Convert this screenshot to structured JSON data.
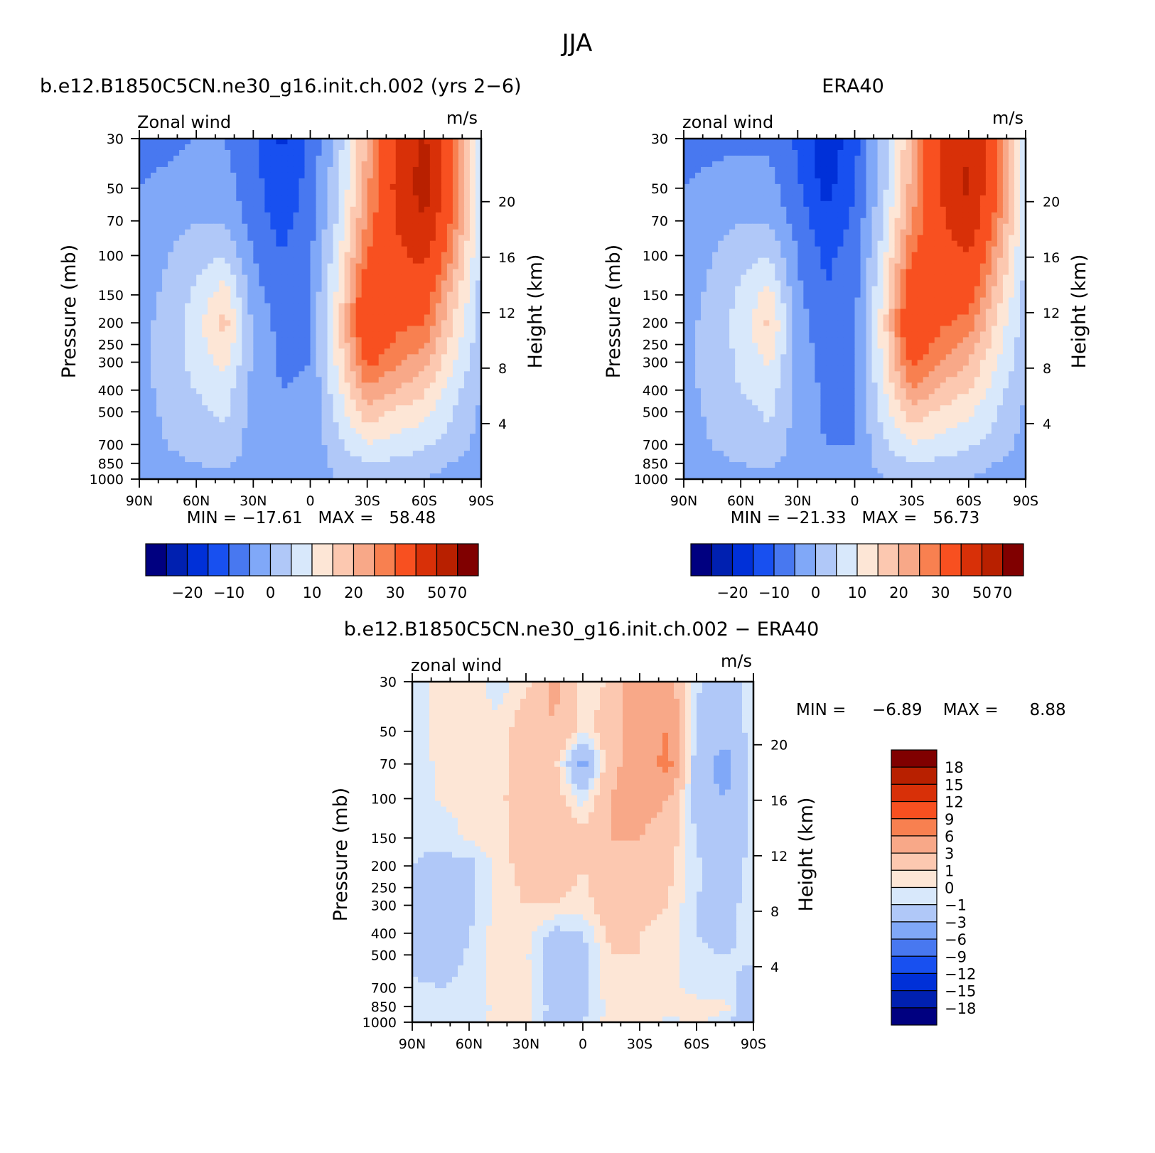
{
  "figure": {
    "title": "JJA",
    "cbar_colors": [
      "#000080",
      "#0020b0",
      "#0030d8",
      "#1850f0",
      "#4878f0",
      "#80a8f8",
      "#b0c8f8",
      "#d8e8fb",
      "#fde6d6",
      "#fcc8b0",
      "#f8a888",
      "#f88050",
      "#f85020",
      "#d83008",
      "#b82000",
      "#800000"
    ]
  },
  "panels": [
    {
      "title": "b.e12.B1850C5CN.ne30_g16.init.ch.002 (yrs 2−6)",
      "left_label": "Zonal wind",
      "right_label": "m/s",
      "ylabel": "Pressure (mb)",
      "y2label": "Height (km)",
      "min_max": "MIN = −17.61   MAX =   58.48"
    },
    {
      "title": "ERA40",
      "left_label": "zonal wind",
      "right_label": "m/s",
      "ylabel": "Pressure (mb)",
      "y2label": "Height (km)",
      "min_max": "MIN = −21.33   MAX =   56.73"
    },
    {
      "title": "b.e12.B1850C5CN.ne30_g16.init.ch.002 − ERA40",
      "left_label": "zonal wind",
      "right_label": "m/s",
      "ylabel": "Pressure (mb)",
      "y2label": "Height (km)",
      "min_max": "MIN =     −6.89    MAX =      8.88"
    }
  ],
  "colorbars": {
    "fields_ticks": [
      "−20",
      "−10",
      "0",
      "10",
      "20",
      "30",
      "50",
      "70"
    ],
    "diff_ticks": [
      "18",
      "15",
      "12",
      "9",
      "6",
      "3",
      "1",
      "0",
      "−1",
      "−3",
      "−6",
      "−9",
      "−12",
      "−15",
      "−18"
    ]
  },
  "chart_data": [
    {
      "type": "heatmap",
      "title": "b.e12.B1850C5CN.ne30_g16.init.ch.002 (yrs 2−6)",
      "variable": "Zonal wind",
      "units": "m/s",
      "xlabel": "",
      "ylabel": "Pressure (mb)",
      "y2label": "Height (km)",
      "x_ticks": [
        "90N",
        "60N",
        "30N",
        "0",
        "30S",
        "60S",
        "90S"
      ],
      "y_ticks": [
        30,
        50,
        70,
        100,
        150,
        200,
        250,
        300,
        400,
        500,
        700,
        850,
        1000
      ],
      "y2_ticks": [
        4,
        8,
        12,
        16,
        20
      ],
      "ylim": [
        1000,
        30
      ],
      "y_scale": "log",
      "lat": [
        90,
        75,
        60,
        45,
        30,
        15,
        0,
        -15,
        -30,
        -45,
        -60,
        -75,
        -90
      ],
      "pressure": [
        30,
        50,
        70,
        100,
        150,
        200,
        300,
        400,
        500,
        700,
        850,
        1000
      ],
      "values": [
        [
          -6,
          -6,
          -5,
          -5,
          -9,
          -16,
          -9,
          3,
          20,
          40,
          52,
          30,
          6
        ],
        [
          -5,
          -4,
          -2,
          -3,
          -8,
          -14,
          -8,
          4,
          24,
          42,
          55,
          30,
          6
        ],
        [
          -4,
          -2,
          0,
          -1,
          -7,
          -12,
          -7,
          6,
          26,
          40,
          50,
          28,
          5
        ],
        [
          -3,
          0,
          3,
          5,
          -5,
          -10,
          -6,
          9,
          30,
          38,
          42,
          24,
          4
        ],
        [
          -2,
          1,
          6,
          13,
          -3,
          -8,
          -5,
          12,
          37,
          34,
          35,
          18,
          3
        ],
        [
          -2,
          2,
          8,
          17,
          -1,
          -7,
          -5,
          14,
          40,
          32,
          30,
          15,
          2
        ],
        [
          -2,
          2,
          7,
          12,
          -1,
          -6,
          -5,
          12,
          32,
          26,
          22,
          11,
          1
        ],
        [
          -2,
          2,
          5,
          8,
          -2,
          -5,
          -4,
          9,
          24,
          20,
          16,
          7,
          0
        ],
        [
          -2,
          1,
          4,
          6,
          -2,
          -5,
          -4,
          7,
          18,
          14,
          12,
          5,
          -1
        ],
        [
          -2,
          0,
          2,
          3,
          -2,
          -5,
          -4,
          4,
          10,
          8,
          6,
          3,
          -2
        ],
        [
          -2,
          -1,
          0,
          1,
          -2,
          -4,
          -4,
          2,
          5,
          4,
          2,
          0,
          -3
        ],
        [
          -3,
          -2,
          -2,
          -1,
          -2,
          -3,
          -3,
          0,
          2,
          1,
          0,
          -2,
          -4
        ]
      ],
      "contour_levels": [
        -25,
        -20,
        -15,
        -10,
        -5,
        0,
        5,
        10,
        15,
        20,
        25,
        30,
        40,
        50,
        60,
        70
      ],
      "min": -17.61,
      "max": 58.48
    },
    {
      "type": "heatmap",
      "title": "ERA40",
      "variable": "zonal wind",
      "units": "m/s",
      "xlabel": "",
      "ylabel": "Pressure (mb)",
      "y2label": "Height (km)",
      "x_ticks": [
        "90N",
        "60N",
        "30N",
        "0",
        "30S",
        "60S",
        "90S"
      ],
      "y_ticks": [
        30,
        50,
        70,
        100,
        150,
        200,
        250,
        300,
        400,
        500,
        700,
        850,
        1000
      ],
      "y2_ticks": [
        4,
        8,
        12,
        16,
        20
      ],
      "ylim": [
        1000,
        30
      ],
      "y_scale": "log",
      "lat": [
        90,
        75,
        60,
        45,
        30,
        15,
        0,
        -15,
        -30,
        -45,
        -60,
        -75,
        -90
      ],
      "pressure": [
        30,
        50,
        70,
        100,
        150,
        200,
        300,
        400,
        500,
        700,
        850,
        1000
      ],
      "values": [
        [
          -6,
          -6,
          -6,
          -6,
          -11,
          -19,
          -12,
          2,
          20,
          40,
          50,
          30,
          6
        ],
        [
          -5,
          -4,
          -3,
          -3,
          -9,
          -17,
          -10,
          3,
          22,
          40,
          52,
          30,
          6
        ],
        [
          -4,
          -2,
          0,
          -1,
          -7,
          -14,
          -9,
          5,
          25,
          38,
          48,
          27,
          5
        ],
        [
          -3,
          0,
          3,
          5,
          -5,
          -11,
          -8,
          8,
          30,
          36,
          40,
          22,
          4
        ],
        [
          -2,
          1,
          6,
          12,
          -4,
          -10,
          -7,
          11,
          36,
          33,
          33,
          17,
          3
        ],
        [
          -2,
          2,
          7,
          16,
          -2,
          -9,
          -6,
          13,
          40,
          31,
          28,
          14,
          2
        ],
        [
          -2,
          2,
          6,
          11,
          -2,
          -7,
          -6,
          11,
          32,
          25,
          20,
          10,
          1
        ],
        [
          -2,
          2,
          5,
          8,
          -2,
          -6,
          -5,
          9,
          25,
          19,
          15,
          7,
          0
        ],
        [
          -2,
          1,
          3,
          6,
          -2,
          -6,
          -5,
          7,
          18,
          14,
          11,
          5,
          -1
        ],
        [
          -2,
          0,
          2,
          3,
          -2,
          -5,
          -5,
          4,
          10,
          8,
          6,
          3,
          -2
        ],
        [
          -2,
          -1,
          0,
          1,
          -2,
          -5,
          -4,
          2,
          5,
          4,
          2,
          0,
          -3
        ],
        [
          -3,
          -2,
          -2,
          -1,
          -2,
          -4,
          -4,
          0,
          2,
          1,
          0,
          -2,
          -4
        ]
      ],
      "contour_levels": [
        -25,
        -20,
        -15,
        -10,
        -5,
        0,
        5,
        10,
        15,
        20,
        25,
        30,
        40,
        50,
        60,
        70
      ],
      "min": -21.33,
      "max": 56.73
    },
    {
      "type": "heatmap",
      "title": "b.e12.B1850C5CN.ne30_g16.init.ch.002 − ERA40",
      "variable": "zonal wind",
      "units": "m/s",
      "xlabel": "",
      "ylabel": "Pressure (mb)",
      "y2label": "Height (km)",
      "x_ticks": [
        "90N",
        "60N",
        "30N",
        "0",
        "30S",
        "60S",
        "90S"
      ],
      "y_ticks": [
        30,
        50,
        70,
        100,
        150,
        200,
        250,
        300,
        400,
        500,
        700,
        850,
        1000
      ],
      "y2_ticks": [
        4,
        8,
        12,
        16,
        20
      ],
      "ylim": [
        1000,
        30
      ],
      "y_scale": "log",
      "lat": [
        90,
        75,
        60,
        45,
        30,
        15,
        0,
        -15,
        -30,
        -45,
        -60,
        -75,
        -90
      ],
      "pressure": [
        30,
        50,
        70,
        100,
        150,
        200,
        300,
        400,
        500,
        700,
        850,
        1000
      ],
      "values": [
        [
          -0.5,
          0.4,
          0.5,
          -0.5,
          0.6,
          3.5,
          0.7,
          1,
          5,
          4,
          -0.8,
          -1.5,
          -0.5
        ],
        [
          -0.5,
          0.3,
          0.4,
          0.3,
          2,
          3,
          0.2,
          2,
          5,
          6,
          -1.5,
          -2,
          -0.5
        ],
        [
          -0.5,
          0.2,
          0.3,
          0.6,
          1.5,
          1.5,
          -4,
          2.5,
          4,
          7,
          -2,
          -4,
          -0.5
        ],
        [
          -0.5,
          0.1,
          0.2,
          0.8,
          1.5,
          2,
          -0.5,
          3,
          4,
          3,
          -2,
          -3,
          -0.5
        ],
        [
          -0.8,
          -0.5,
          0.2,
          0.5,
          1.5,
          2.5,
          1.5,
          3,
          3,
          2,
          -1,
          -2.5,
          -0.5
        ],
        [
          -1,
          -1.5,
          -1.5,
          0.5,
          1.5,
          2,
          1,
          2,
          3,
          1.5,
          -0.8,
          -2,
          -0.5
        ],
        [
          -1.5,
          -2,
          -1.5,
          0.5,
          1,
          1,
          0.5,
          2,
          1.5,
          1,
          -1,
          -1.5,
          -0.5
        ],
        [
          -1.5,
          -2.5,
          -1,
          0.5,
          0.5,
          -1.5,
          -1,
          1.5,
          1,
          0.5,
          -1,
          -1.5,
          -0.5
        ],
        [
          -1.2,
          -2,
          -0.8,
          0.5,
          0.2,
          -2,
          -1.5,
          1,
          1,
          0.5,
          -0.8,
          -1,
          -0.5
        ],
        [
          -0.8,
          -1,
          -0.5,
          0.3,
          0.3,
          -2,
          -1.5,
          0.8,
          0.5,
          0.5,
          -0.5,
          -0.5,
          -2
        ],
        [
          -0.5,
          -0.5,
          -0.5,
          0.2,
          0.4,
          -1.5,
          -1.5,
          0.5,
          1,
          0.5,
          0.5,
          0.5,
          -3
        ],
        [
          -0.5,
          -0.5,
          -0.5,
          0.3,
          0.5,
          -2.5,
          -1,
          0.5,
          1,
          -0.5,
          0.5,
          -0.8,
          -3
        ]
      ],
      "contour_levels": [
        -18,
        -15,
        -12,
        -9,
        -6,
        -3,
        -1,
        0,
        1,
        3,
        6,
        9,
        12,
        15,
        18
      ],
      "min": -6.89,
      "max": 8.88
    }
  ]
}
